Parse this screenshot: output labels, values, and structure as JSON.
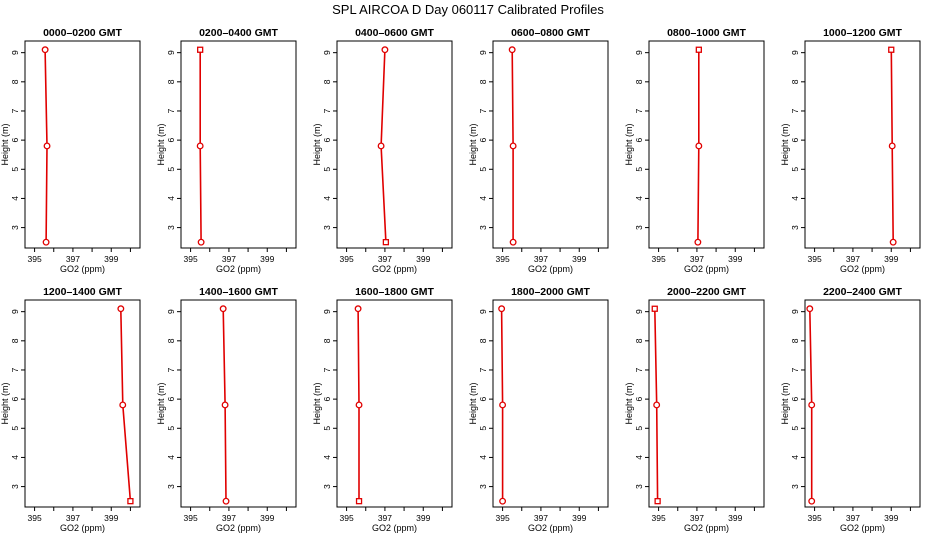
{
  "page_title": "SPL AIRCOA D  Day 060117  Calibrated Profiles",
  "styles": {
    "profile_color": "#e00000",
    "axis_color": "#000000",
    "background": "#ffffff"
  },
  "chart_data": [
    {
      "type": "line",
      "title": "0000–0200 GMT",
      "xlabel": "GO2 (ppm)",
      "ylabel": "Height (m)",
      "xlim": [
        394.5,
        400.5
      ],
      "ylim": [
        2.3,
        9.4
      ],
      "xticks": [
        395,
        396,
        397,
        398,
        399,
        400
      ],
      "xticklabels": [
        "395",
        "",
        "397",
        "",
        "399",
        ""
      ],
      "yticks": [
        3,
        4,
        5,
        6,
        7,
        8,
        9
      ],
      "grid": false,
      "series": [
        {
          "x": [
            395.6,
            395.65,
            395.55
          ],
          "y": [
            2.5,
            5.8,
            9.1
          ],
          "markers": [
            "circle",
            "circle",
            "circle"
          ]
        }
      ]
    },
    {
      "type": "line",
      "title": "0200–0400 GMT",
      "xlabel": "GO2 (ppm)",
      "ylabel": "Height (m)",
      "xlim": [
        394.5,
        400.5
      ],
      "ylim": [
        2.3,
        9.4
      ],
      "xticks": [
        395,
        396,
        397,
        398,
        399,
        400
      ],
      "xticklabels": [
        "395",
        "",
        "397",
        "",
        "399",
        ""
      ],
      "yticks": [
        3,
        4,
        5,
        6,
        7,
        8,
        9
      ],
      "grid": false,
      "series": [
        {
          "x": [
            395.55,
            395.5,
            395.5
          ],
          "y": [
            2.5,
            5.8,
            9.1
          ],
          "markers": [
            "circle",
            "circle",
            "square"
          ]
        }
      ]
    },
    {
      "type": "line",
      "title": "0400–0600 GMT",
      "xlabel": "GO2 (ppm)",
      "ylabel": "Height (m)",
      "xlim": [
        394.5,
        400.5
      ],
      "ylim": [
        2.3,
        9.4
      ],
      "xticks": [
        395,
        396,
        397,
        398,
        399,
        400
      ],
      "xticklabels": [
        "395",
        "",
        "397",
        "",
        "399",
        ""
      ],
      "yticks": [
        3,
        4,
        5,
        6,
        7,
        8,
        9
      ],
      "grid": false,
      "series": [
        {
          "x": [
            397.05,
            396.8,
            397.0
          ],
          "y": [
            2.5,
            5.8,
            9.1
          ],
          "markers": [
            "square",
            "circle",
            "circle"
          ]
        }
      ]
    },
    {
      "type": "line",
      "title": "0600–0800 GMT",
      "xlabel": "GO2 (ppm)",
      "ylabel": "Height (m)",
      "xlim": [
        394.5,
        400.5
      ],
      "ylim": [
        2.3,
        9.4
      ],
      "xticks": [
        395,
        396,
        397,
        398,
        399,
        400
      ],
      "xticklabels": [
        "395",
        "",
        "397",
        "",
        "399",
        ""
      ],
      "yticks": [
        3,
        4,
        5,
        6,
        7,
        8,
        9
      ],
      "grid": false,
      "series": [
        {
          "x": [
            395.55,
            395.55,
            395.5
          ],
          "y": [
            2.5,
            5.8,
            9.1
          ],
          "markers": [
            "circle",
            "circle",
            "circle"
          ]
        }
      ]
    },
    {
      "type": "line",
      "title": "0800–1000 GMT",
      "xlabel": "GO2 (ppm)",
      "ylabel": "Height (m)",
      "xlim": [
        394.5,
        400.5
      ],
      "ylim": [
        2.3,
        9.4
      ],
      "xticks": [
        395,
        396,
        397,
        398,
        399,
        400
      ],
      "xticklabels": [
        "395",
        "",
        "397",
        "",
        "399",
        ""
      ],
      "yticks": [
        3,
        4,
        5,
        6,
        7,
        8,
        9
      ],
      "grid": false,
      "series": [
        {
          "x": [
            397.05,
            397.1,
            397.1
          ],
          "y": [
            2.5,
            5.8,
            9.1
          ],
          "markers": [
            "circle",
            "circle",
            "square"
          ]
        }
      ]
    },
    {
      "type": "line",
      "title": "1000–1200 GMT",
      "xlabel": "GO2 (ppm)",
      "ylabel": "Height (m)",
      "xlim": [
        394.5,
        400.5
      ],
      "ylim": [
        2.3,
        9.4
      ],
      "xticks": [
        395,
        396,
        397,
        398,
        399,
        400
      ],
      "xticklabels": [
        "395",
        "",
        "397",
        "",
        "399",
        ""
      ],
      "yticks": [
        3,
        4,
        5,
        6,
        7,
        8,
        9
      ],
      "grid": false,
      "series": [
        {
          "x": [
            399.1,
            399.05,
            399.0
          ],
          "y": [
            2.5,
            5.8,
            9.1
          ],
          "markers": [
            "circle",
            "circle",
            "square"
          ]
        }
      ]
    },
    {
      "type": "line",
      "title": "1200–1400 GMT",
      "xlabel": "GO2 (ppm)",
      "ylabel": "Height (m)",
      "xlim": [
        394.5,
        400.5
      ],
      "ylim": [
        2.3,
        9.4
      ],
      "xticks": [
        395,
        396,
        397,
        398,
        399,
        400
      ],
      "xticklabels": [
        "395",
        "",
        "397",
        "",
        "399",
        ""
      ],
      "yticks": [
        3,
        4,
        5,
        6,
        7,
        8,
        9
      ],
      "grid": false,
      "series": [
        {
          "x": [
            400.0,
            399.6,
            399.5
          ],
          "y": [
            2.5,
            5.8,
            9.1
          ],
          "markers": [
            "square",
            "circle",
            "circle"
          ]
        }
      ]
    },
    {
      "type": "line",
      "title": "1400–1600 GMT",
      "xlabel": "GO2 (ppm)",
      "ylabel": "Height (m)",
      "xlim": [
        394.5,
        400.5
      ],
      "ylim": [
        2.3,
        9.4
      ],
      "xticks": [
        395,
        396,
        397,
        398,
        399,
        400
      ],
      "xticklabels": [
        "395",
        "",
        "397",
        "",
        "399",
        ""
      ],
      "yticks": [
        3,
        4,
        5,
        6,
        7,
        8,
        9
      ],
      "grid": false,
      "series": [
        {
          "x": [
            396.85,
            396.8,
            396.7
          ],
          "y": [
            2.5,
            5.8,
            9.1
          ],
          "markers": [
            "circle",
            "circle",
            "circle"
          ]
        }
      ]
    },
    {
      "type": "line",
      "title": "1600–1800 GMT",
      "xlabel": "GO2 (ppm)",
      "ylabel": "Height (m)",
      "xlim": [
        394.5,
        400.5
      ],
      "ylim": [
        2.3,
        9.4
      ],
      "xticks": [
        395,
        396,
        397,
        398,
        399,
        400
      ],
      "xticklabels": [
        "395",
        "",
        "397",
        "",
        "399",
        ""
      ],
      "yticks": [
        3,
        4,
        5,
        6,
        7,
        8,
        9
      ],
      "grid": false,
      "series": [
        {
          "x": [
            395.65,
            395.65,
            395.6
          ],
          "y": [
            2.5,
            5.8,
            9.1
          ],
          "markers": [
            "square",
            "circle",
            "circle"
          ]
        }
      ]
    },
    {
      "type": "line",
      "title": "1800–2000 GMT",
      "xlabel": "GO2 (ppm)",
      "ylabel": "Height (m)",
      "xlim": [
        394.5,
        400.5
      ],
      "ylim": [
        2.3,
        9.4
      ],
      "xticks": [
        395,
        396,
        397,
        398,
        399,
        400
      ],
      "xticklabels": [
        "395",
        "",
        "397",
        "",
        "399",
        ""
      ],
      "yticks": [
        3,
        4,
        5,
        6,
        7,
        8,
        9
      ],
      "grid": false,
      "series": [
        {
          "x": [
            395.0,
            395.0,
            394.95
          ],
          "y": [
            2.5,
            5.8,
            9.1
          ],
          "markers": [
            "circle",
            "circle",
            "circle"
          ]
        }
      ]
    },
    {
      "type": "line",
      "title": "2000–2200 GMT",
      "xlabel": "GO2 (ppm)",
      "ylabel": "Height (m)",
      "xlim": [
        394.5,
        400.5
      ],
      "ylim": [
        2.3,
        9.4
      ],
      "xticks": [
        395,
        396,
        397,
        398,
        399,
        400
      ],
      "xticklabels": [
        "395",
        "",
        "397",
        "",
        "399",
        ""
      ],
      "yticks": [
        3,
        4,
        5,
        6,
        7,
        8,
        9
      ],
      "grid": false,
      "series": [
        {
          "x": [
            394.95,
            394.9,
            394.8
          ],
          "y": [
            2.5,
            5.8,
            9.1
          ],
          "markers": [
            "square",
            "circle",
            "square"
          ]
        }
      ]
    },
    {
      "type": "line",
      "title": "2200–2400 GMT",
      "xlabel": "GO2 (ppm)",
      "ylabel": "Height (m)",
      "xlim": [
        394.5,
        400.5
      ],
      "ylim": [
        2.3,
        9.4
      ],
      "xticks": [
        395,
        396,
        397,
        398,
        399,
        400
      ],
      "xticklabels": [
        "395",
        "",
        "397",
        "",
        "399",
        ""
      ],
      "yticks": [
        3,
        4,
        5,
        6,
        7,
        8,
        9
      ],
      "grid": false,
      "series": [
        {
          "x": [
            394.85,
            394.85,
            394.75
          ],
          "y": [
            2.5,
            5.8,
            9.1
          ],
          "markers": [
            "circle",
            "circle",
            "circle"
          ]
        }
      ]
    }
  ]
}
